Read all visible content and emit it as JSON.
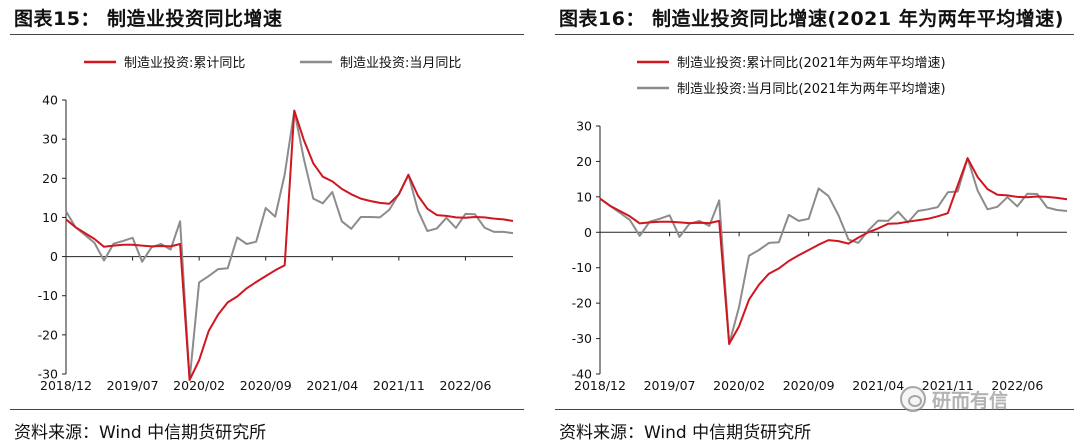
{
  "left": {
    "title": "图表15： 制造业投资同比增速",
    "source": "资料来源：Wind 中信期货研究所",
    "chart_data": {
      "type": "line",
      "title": "图表15： 制造业投资同比增速",
      "xlabel": "",
      "ylabel": "",
      "ylim": [
        -30,
        40
      ],
      "yticks": [
        -30,
        -20,
        -10,
        0,
        10,
        20,
        30,
        40
      ],
      "xtick_labels": [
        "2018/12",
        "2019/07",
        "2020/02",
        "2020/09",
        "2021/04",
        "2021/11",
        "2022/06"
      ],
      "xtick_index": [
        0,
        7,
        14,
        21,
        28,
        35,
        42
      ],
      "x_count": 48,
      "legend_position": "top",
      "series": [
        {
          "name": "制造业投资:累计同比",
          "color": "#d0161e",
          "values": [
            9.5,
            7.5,
            6,
            4.5,
            2.5,
            2.8,
            3.0,
            3.0,
            2.8,
            2.6,
            2.7,
            2.6,
            3.2,
            -31.5,
            -26.5,
            -19,
            -14.8,
            -11.7,
            -10.2,
            -8.1,
            -6.5,
            -5.0,
            -3.5,
            -2.2,
            37.3,
            29.8,
            23.8,
            20.4,
            19.2,
            17.3,
            15.9,
            14.8,
            14.2,
            13.7,
            13.5,
            15.9,
            20.9,
            15.6,
            12.2,
            10.6,
            10.4,
            10.0,
            9.9,
            10.1,
            10.0,
            9.7,
            9.5,
            9.1
          ]
        },
        {
          "name": "制造业投资:当月同比",
          "color": "#8c8c8c",
          "values": [
            11.6,
            7.5,
            5.5,
            3.5,
            -1.0,
            3.3,
            4.0,
            4.8,
            -1.3,
            2.4,
            3.2,
            1.8,
            9.0,
            -31.5,
            -6.6,
            -5.0,
            -3.2,
            -3.0,
            4.9,
            3.2,
            3.8,
            12.4,
            10.2,
            21.0,
            37.3,
            25.0,
            14.8,
            13.6,
            16.5,
            9.0,
            7.1,
            10.1,
            10.1,
            10.0,
            12.0,
            16.0,
            20.9,
            11.8,
            6.5,
            7.2,
            9.9,
            7.3,
            10.9,
            10.8,
            7.4,
            6.3,
            6.3,
            6.0
          ]
        }
      ]
    }
  },
  "right": {
    "title": "图表16： 制造业投资同比增速(2021 年为两年平均增速)",
    "source": "资料来源：Wind 中信期货研究所",
    "chart_data": {
      "type": "line",
      "title": "图表16： 制造业投资同比增速(2021 年为两年平均增速)",
      "xlabel": "",
      "ylabel": "",
      "ylim": [
        -40,
        30
      ],
      "yticks": [
        -40,
        -30,
        -20,
        -10,
        0,
        10,
        20,
        30
      ],
      "xtick_labels": [
        "2018/12",
        "2019/07",
        "2020/02",
        "2020/09",
        "2021/04",
        "2021/11",
        "2022/06"
      ],
      "xtick_index": [
        0,
        7,
        14,
        21,
        28,
        35,
        42
      ],
      "x_count": 48,
      "legend_position": "top",
      "series": [
        {
          "name": "制造业投资:累计同比(2021年为两年平均增速)",
          "color": "#d0161e",
          "values": [
            9.5,
            7.5,
            6.0,
            4.5,
            2.5,
            2.8,
            3.0,
            3.0,
            2.8,
            2.6,
            2.7,
            2.6,
            3.2,
            -31.5,
            -26.5,
            -19,
            -14.8,
            -11.7,
            -10.2,
            -8.1,
            -6.5,
            -5.0,
            -3.5,
            -2.2,
            -2.5,
            -3.2,
            -1.5,
            0.0,
            1.1,
            2.4,
            2.5,
            3.0,
            3.4,
            3.8,
            4.5,
            5.4,
            13.2,
            20.9,
            15.6,
            12.2,
            10.6,
            10.4,
            10.0,
            9.9,
            10.1,
            10.0,
            9.7,
            9.3
          ]
        },
        {
          "name": "制造业投资:当月同比(2021年为两年平均增速)",
          "color": "#8c8c8c",
          "values": [
            9.5,
            7.5,
            5.5,
            3.5,
            -1.0,
            3.0,
            3.8,
            4.8,
            -1.3,
            2.4,
            3.2,
            1.8,
            9.0,
            -31.5,
            -21.0,
            -6.6,
            -5.0,
            -3.0,
            -2.8,
            4.9,
            3.2,
            3.8,
            12.4,
            10.2,
            4.8,
            -2.0,
            -3.0,
            0.5,
            3.3,
            3.2,
            5.8,
            2.8,
            6.0,
            6.5,
            7.1,
            11.3,
            11.5,
            20.9,
            11.8,
            6.5,
            7.2,
            9.9,
            7.3,
            10.9,
            10.8,
            7.0,
            6.3,
            6.0
          ]
        }
      ]
    }
  },
  "watermark": {
    "text": "研而有信"
  }
}
